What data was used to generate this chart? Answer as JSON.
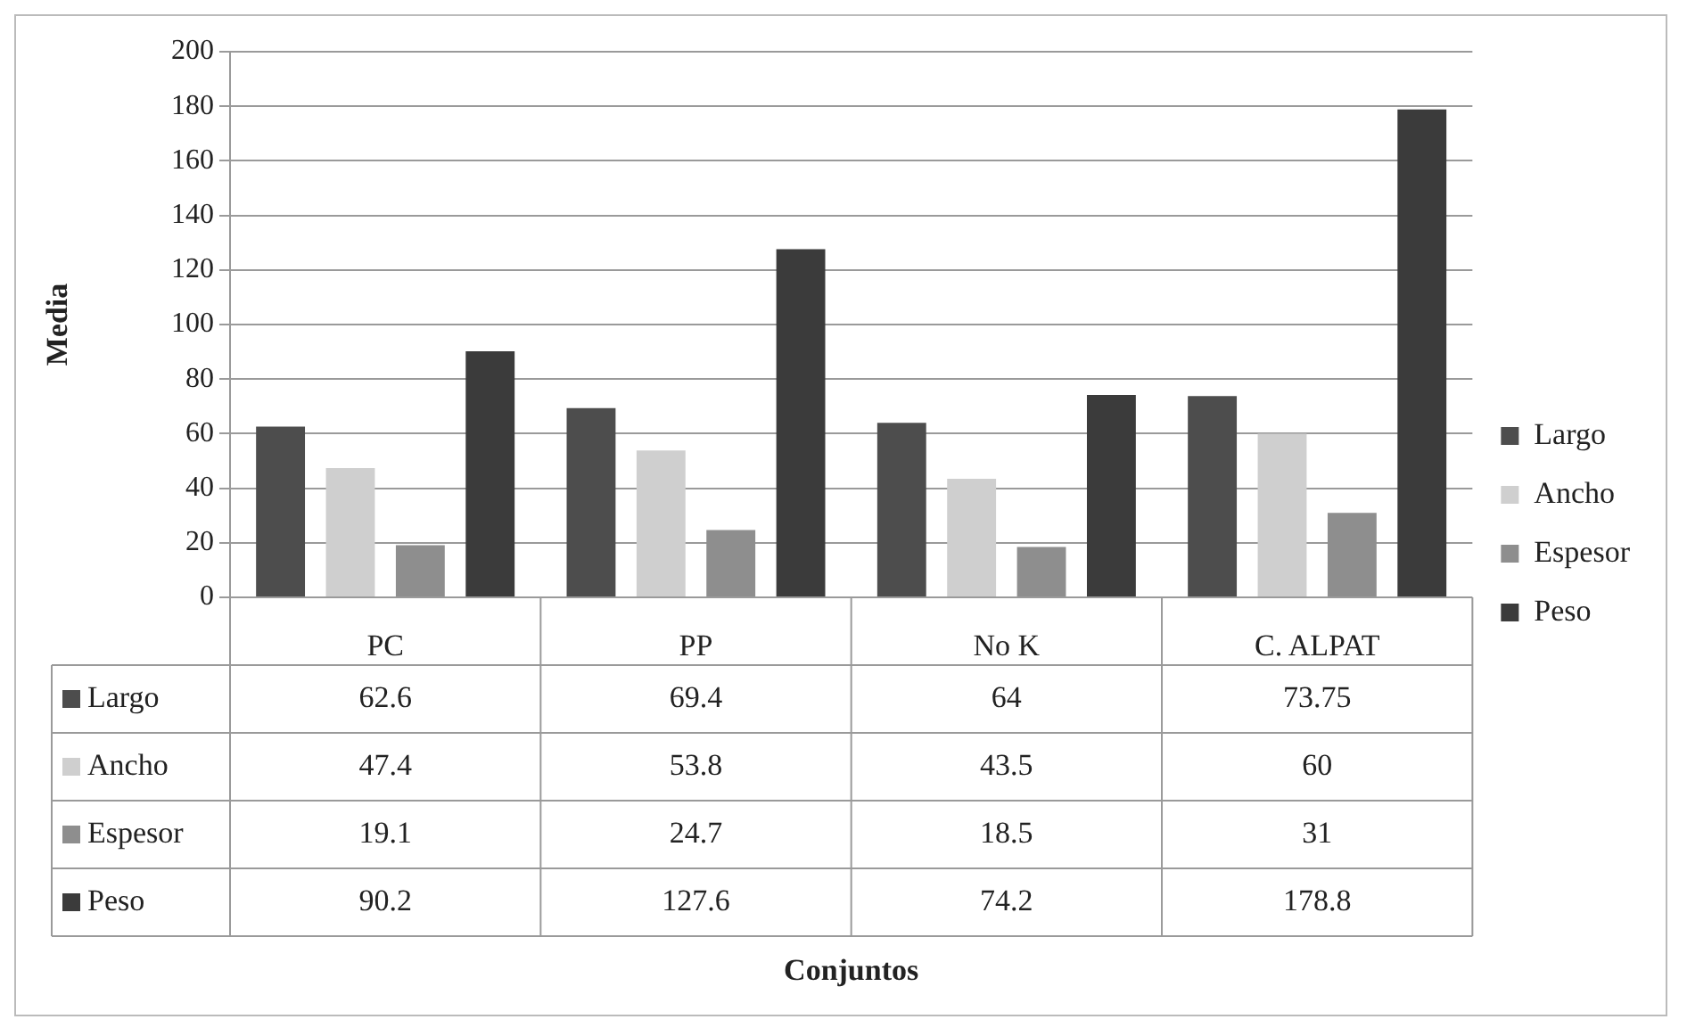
{
  "chart_data": {
    "type": "bar",
    "annotations": [
      "Conjuntos"
    ],
    "ylabel": "Media",
    "categories": [
      "PC",
      "PP",
      "No K",
      "C. ALPAT"
    ],
    "series": [
      {
        "name": "Largo",
        "color": "#4d4d4d",
        "values": [
          62.6,
          69.4,
          64,
          73.75
        ]
      },
      {
        "name": "Ancho",
        "color": "#cfcfcf",
        "values": [
          47.4,
          53.8,
          43.5,
          60
        ]
      },
      {
        "name": "Espesor",
        "color": "#8e8e8e",
        "values": [
          19.1,
          24.7,
          18.5,
          31
        ]
      },
      {
        "name": "Peso",
        "color": "#3b3b3b",
        "values": [
          90.2,
          127.6,
          74.2,
          178.8
        ]
      }
    ],
    "ylim": [
      0,
      200
    ],
    "yticks": [
      0,
      20,
      40,
      60,
      80,
      100,
      120,
      140,
      160,
      180,
      200
    ],
    "grid": "y",
    "legend": "right",
    "data_labels": true
  }
}
